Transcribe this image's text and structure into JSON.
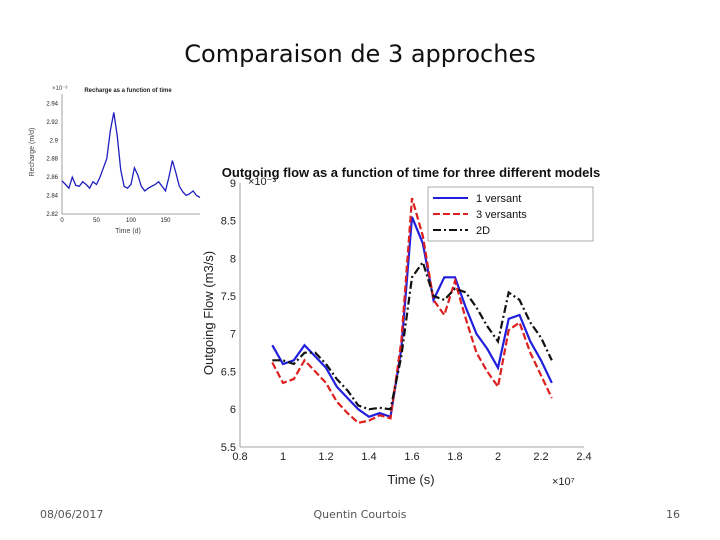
{
  "slide": {
    "title": "Comparaison de 3 approches",
    "footer_date": "08/06/2017",
    "footer_author": "Quentin Courtois",
    "footer_page": "16"
  },
  "chart_data": [
    {
      "type": "line",
      "title": "Recharge as a function of time",
      "xlabel": "Time (d)",
      "ylabel": "Recharge (m/d)",
      "y_exponent_label": "×10⁻³",
      "xlim": [
        0,
        200
      ],
      "ylim": [
        2.82,
        2.95
      ],
      "x_ticks": [
        0,
        50,
        100,
        150
      ],
      "x_tick_labels": [
        "0",
        "50",
        "100",
        "150"
      ],
      "y_ticks": [
        2.82,
        2.84,
        2.86,
        2.88,
        2.9,
        2.92,
        2.94
      ],
      "y_tick_labels": [
        "2.82",
        "2.84",
        "2.86",
        "2.88",
        "2.9",
        "2.92",
        "2.94"
      ],
      "color": "#1f1fbf",
      "x": [
        0,
        5,
        10,
        15,
        20,
        25,
        30,
        35,
        40,
        45,
        50,
        55,
        60,
        65,
        70,
        75,
        80,
        85,
        90,
        95,
        100,
        105,
        110,
        115,
        120,
        125,
        130,
        135,
        140,
        145,
        150,
        155,
        160,
        165,
        170,
        175,
        180,
        185,
        190,
        195,
        200
      ],
      "values": [
        2.856,
        2.852,
        2.848,
        2.86,
        2.851,
        2.85,
        2.855,
        2.852,
        2.848,
        2.855,
        2.852,
        2.86,
        2.87,
        2.88,
        2.91,
        2.93,
        2.905,
        2.868,
        2.85,
        2.848,
        2.852,
        2.87,
        2.862,
        2.85,
        2.845,
        2.848,
        2.85,
        2.852,
        2.855,
        2.85,
        2.845,
        2.86,
        2.878,
        2.865,
        2.85,
        2.844,
        2.84,
        2.842,
        2.845,
        2.84,
        2.838
      ]
    },
    {
      "type": "line",
      "title": "Outgoing flow as a function of time for three different models",
      "xlabel": "Time (s)",
      "ylabel": "Outgoing Flow (m3/s)",
      "x_exponent_label": "×10⁷",
      "y_exponent_label": "×10⁻³",
      "xlim": [
        0.8,
        2.4
      ],
      "ylim": [
        5.5,
        9.0
      ],
      "x_ticks": [
        0.8,
        1,
        1.2,
        1.4,
        1.6,
        1.8,
        2,
        2.2,
        2.4
      ],
      "x_tick_labels": [
        "0.8",
        "1",
        "1.2",
        "1.4",
        "1.6",
        "1.8",
        "2",
        "2.2",
        "2.4"
      ],
      "y_ticks": [
        5.5,
        6,
        6.5,
        7,
        7.5,
        8,
        8.5,
        9
      ],
      "y_tick_labels": [
        "5.5",
        "6",
        "6.5",
        "7",
        "7.5",
        "8",
        "8.5",
        "9"
      ],
      "grid": false,
      "legend_position": "top-right",
      "x": [
        0.95,
        1.0,
        1.05,
        1.1,
        1.15,
        1.2,
        1.25,
        1.3,
        1.35,
        1.4,
        1.45,
        1.5,
        1.55,
        1.6,
        1.65,
        1.7,
        1.75,
        1.8,
        1.85,
        1.9,
        1.95,
        2.0,
        2.05,
        2.1,
        2.15,
        2.2,
        2.25
      ],
      "series": [
        {
          "name": "1 versant",
          "color": "#1f1fdd",
          "dash": "solid",
          "values": [
            6.85,
            6.6,
            6.65,
            6.85,
            6.7,
            6.55,
            6.3,
            6.15,
            6.0,
            5.9,
            5.95,
            5.9,
            6.8,
            8.55,
            8.2,
            7.45,
            7.75,
            7.75,
            7.35,
            7.0,
            6.8,
            6.55,
            7.2,
            7.25,
            6.9,
            6.65,
            6.35
          ]
        },
        {
          "name": "3 versants",
          "color": "#dd1f1f",
          "dash": "dashed",
          "values": [
            6.62,
            6.35,
            6.4,
            6.65,
            6.5,
            6.35,
            6.1,
            5.95,
            5.82,
            5.85,
            5.92,
            5.88,
            6.9,
            8.8,
            8.3,
            7.45,
            7.25,
            7.7,
            7.2,
            6.75,
            6.5,
            6.3,
            7.05,
            7.15,
            6.75,
            6.45,
            6.15
          ]
        },
        {
          "name": "2D",
          "color": "#111111",
          "dash": "dash-dot",
          "values": [
            6.65,
            6.65,
            6.6,
            6.75,
            6.75,
            6.6,
            6.4,
            6.25,
            6.05,
            6.0,
            6.02,
            6.0,
            6.7,
            7.75,
            7.95,
            7.5,
            7.45,
            7.6,
            7.55,
            7.35,
            7.1,
            6.9,
            7.55,
            7.45,
            7.15,
            6.95,
            6.65
          ]
        }
      ]
    }
  ]
}
